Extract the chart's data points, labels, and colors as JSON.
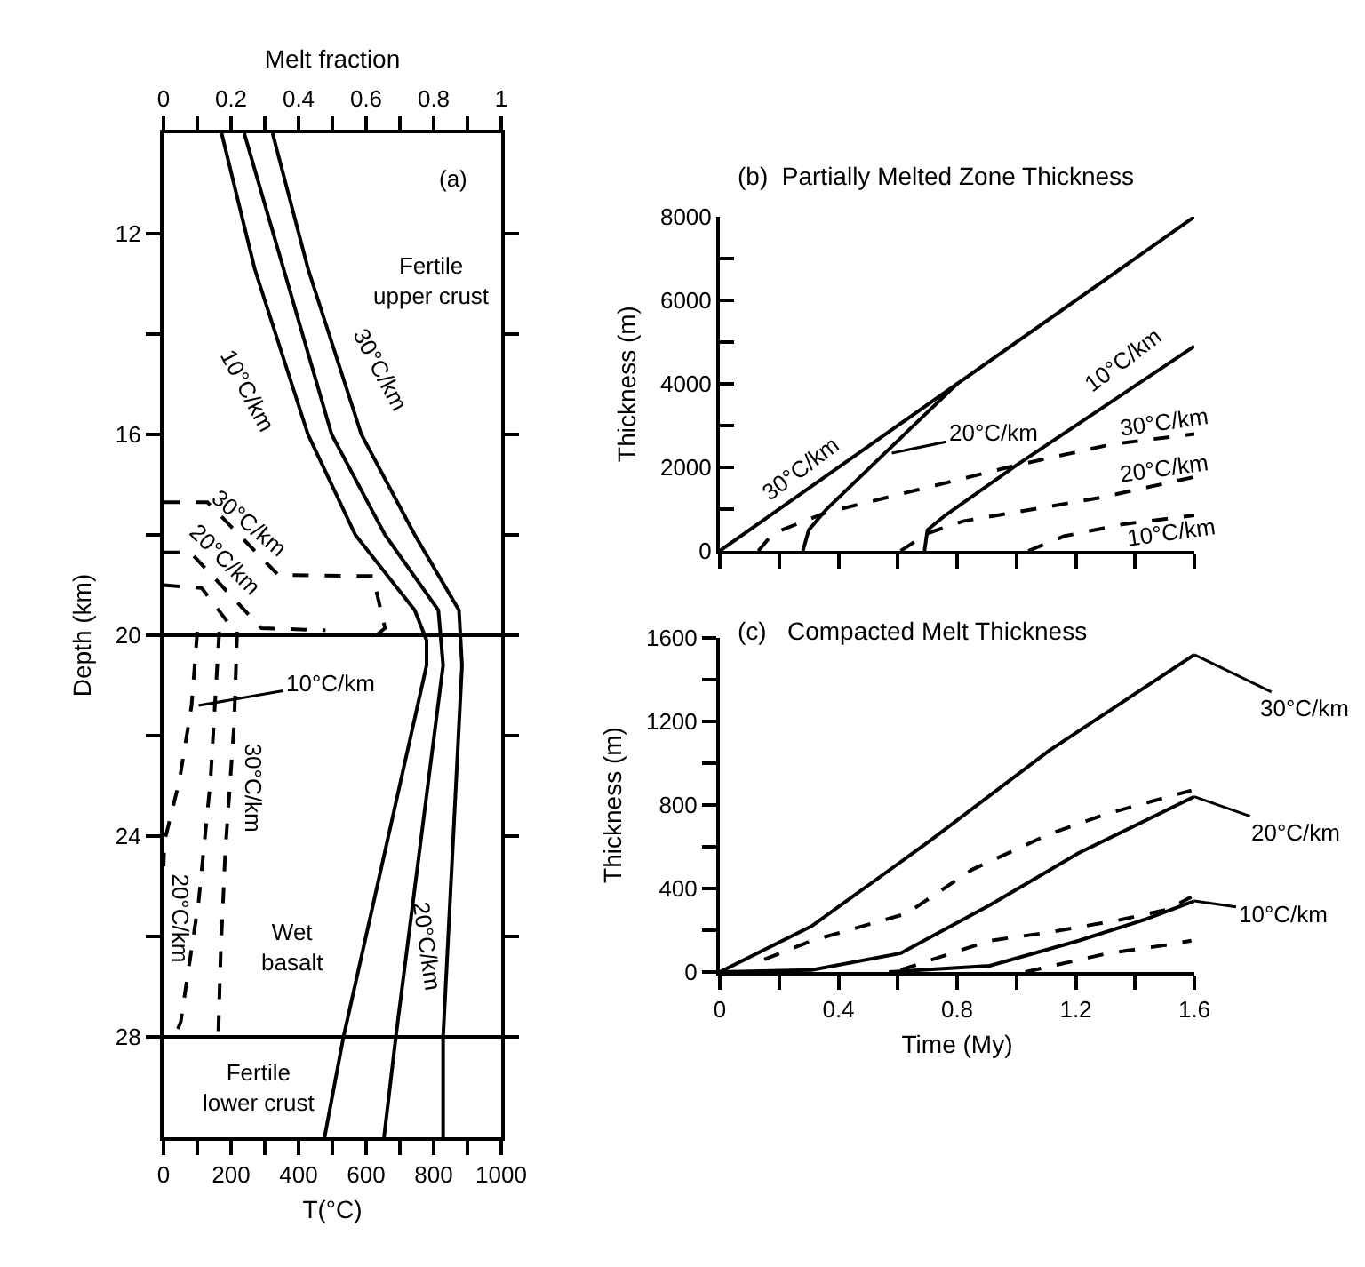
{
  "chart_data": [
    {
      "type": "line",
      "xlabel": "T(°C)",
      "x2label": "Melt fraction",
      "ylabel": "Depth (km)",
      "xlim": [
        0,
        1000
      ],
      "xticks": [
        0,
        {
          "value": 100,
          "label": null
        },
        200,
        {
          "value": 300,
          "label": null
        },
        400,
        {
          "value": 500,
          "label": null
        },
        600,
        {
          "value": 700,
          "label": null
        },
        800,
        {
          "value": 900,
          "label": null
        },
        1000
      ],
      "x2lim": [
        0,
        1
      ],
      "x2ticks": [
        0,
        {
          "value": 0.1,
          "label": null
        },
        0.2,
        {
          "value": 0.3,
          "label": null
        },
        0.4,
        {
          "value": 0.5,
          "label": null
        },
        0.6,
        {
          "value": 0.7,
          "label": null
        },
        0.8,
        {
          "value": 0.9,
          "label": null
        },
        1
      ],
      "ylim": [
        30,
        10
      ],
      "yticks": [
        12,
        {
          "value": 14,
          "label": null
        },
        16,
        {
          "value": 18,
          "label": null
        },
        20,
        {
          "value": 22,
          "label": null
        },
        24,
        {
          "value": 26,
          "label": null
        },
        28
      ],
      "series": [
        {
          "x": [
            172,
            270,
            428,
            568,
            744,
            779,
            779,
            533,
            477
          ],
          "values": [
            10,
            12.7,
            16,
            18,
            19.5,
            20.1,
            20.6,
            28,
            30
          ],
          "color": "#000000",
          "line_style": "solid"
        },
        {
          "x": [
            239,
            498,
            656,
            814,
            828,
            688,
            653
          ],
          "values": [
            10,
            16,
            18,
            19.5,
            20.6,
            28,
            30
          ],
          "color": "#000000",
          "line_style": "solid"
        },
        {
          "x": [
            323,
            428,
            586,
            744,
            875,
            884,
            828,
            828
          ],
          "values": [
            10,
            12.7,
            16,
            18,
            19.5,
            20.6,
            28,
            30
          ],
          "color": "#000000",
          "line_style": "solid"
        },
        {
          "x": [
            0,
            0.13,
            0.34,
            0.62,
            0.656,
            0.63
          ],
          "values": [
            17.35,
            17.35,
            18.8,
            18.82,
            19.86,
            20
          ],
          "color": "#000000",
          "line_style": "dashed",
          "axis": "x2"
        },
        {
          "x": [
            0,
            0.08,
            0.29,
            0.48
          ],
          "values": [
            18.35,
            18.35,
            19.86,
            19.9
          ],
          "color": "#000000",
          "line_style": "dashed",
          "axis": "x2"
        },
        {
          "x": [
            0,
            0.113,
            0.22
          ],
          "values": [
            19,
            19.06,
            20
          ],
          "color": "#000000",
          "line_style": "dashed",
          "axis": "x2"
        },
        {
          "x": [
            0.218,
            0.209,
            0.183,
            0.169,
            0.162
          ],
          "values": [
            19.93,
            21.8,
            24.3,
            26.4,
            28
          ],
          "color": "#000000",
          "line_style": "dashed",
          "axis": "x2"
        },
        {
          "x": [
            0.165,
            0.139,
            0.104,
            0.051,
            0.033
          ],
          "values": [
            19.93,
            22.9,
            25.3,
            27.7,
            28
          ],
          "color": "#000000",
          "line_style": "dashed",
          "axis": "x2"
        },
        {
          "x": [
            0.1,
            0.083,
            0.047,
            0.003,
            0
          ],
          "values": [
            19.93,
            21.4,
            22.9,
            24.1,
            24.6
          ],
          "color": "#000000",
          "line_style": "dashed",
          "axis": "x2"
        }
      ],
      "ref_lines": [
        {
          "axis": "y",
          "value": 20,
          "color": "#000000"
        },
        {
          "axis": "y",
          "value": 28,
          "color": "#000000"
        }
      ],
      "annotations": [
        "(a)",
        "Fertile\nupper crust",
        "10°C/km",
        "30°C/km",
        "30°C/km",
        "20°C/km",
        {
          "text": "10°C/km",
          "x": 104,
          "y": 21.4
        },
        "30°C/km",
        "20°C/km",
        "Wet\nbasalt",
        "20°C/km",
        "Fertile\nlower crust"
      ]
    },
    {
      "type": "line",
      "title": "(b)  Partially Melted Zone Thickness",
      "ylabel": "Thickness (m)",
      "tick_labels": "y",
      "xlim": [
        0,
        1.6
      ],
      "xticks": [
        0,
        {
          "value": 0.2,
          "label": null
        },
        0.4,
        {
          "value": 0.6,
          "label": null
        },
        0.8,
        {
          "value": 1.0,
          "label": null
        },
        1.2,
        {
          "value": 1.4,
          "label": null
        },
        1.6
      ],
      "ylim": [
        0,
        8000
      ],
      "yticks": [
        0,
        {
          "value": 1000,
          "label": null
        },
        2000,
        {
          "value": 3000,
          "label": null
        },
        4000,
        {
          "value": 5000,
          "label": null
        },
        6000,
        {
          "value": 7000,
          "label": null
        },
        8000
      ],
      "series": [
        {
          "x": [
            0,
            1.6
          ],
          "values": [
            0,
            8000
          ],
          "color": "#000000",
          "line_style": "solid"
        },
        {
          "x": [
            0.28,
            0.3,
            0.36,
            0.8
          ],
          "values": [
            0,
            500,
            1000,
            4000
          ],
          "color": "#000000",
          "line_style": "solid"
        },
        {
          "x": [
            0.69,
            0.7,
            0.76,
            1.0,
            1.6
          ],
          "values": [
            0,
            500,
            850,
            2050,
            4900
          ],
          "color": "#000000",
          "line_style": "solid"
        },
        {
          "x": [
            0.13,
            0.18,
            0.36,
            1.0,
            1.32,
            1.6
          ],
          "values": [
            0,
            420,
            920,
            2050,
            2550,
            2800
          ],
          "color": "#000000",
          "line_style": "dashed"
        },
        {
          "x": [
            0.61,
            0.7,
            0.82,
            1.28,
            1.6
          ],
          "values": [
            0,
            420,
            710,
            1270,
            1770
          ],
          "color": "#000000",
          "line_style": "dashed"
        },
        {
          "x": [
            1.04,
            1.16,
            1.36,
            1.6
          ],
          "values": [
            0,
            350,
            640,
            850
          ],
          "color": "#000000",
          "line_style": "dashed"
        }
      ],
      "annotations": [
        "30°C/km",
        {
          "text": "20°C/km",
          "x": 0.58,
          "y": 2340
        },
        "10°C/km",
        "30°C/km",
        "20°C/km",
        "10°C/km"
      ]
    },
    {
      "type": "line",
      "title": "(c)   Compacted Melt Thickness",
      "xlabel": "Time (My)",
      "ylabel": "Thickness (m)",
      "xlim": [
        0,
        1.6
      ],
      "xticks": [
        0,
        {
          "value": 0.2,
          "label": null
        },
        0.4,
        {
          "value": 0.6,
          "label": null
        },
        0.8,
        {
          "value": 1.0,
          "label": null
        },
        1.2,
        {
          "value": 1.4,
          "label": null
        },
        1.6
      ],
      "ylim": [
        0,
        1600
      ],
      "yticks": [
        0,
        {
          "value": 200,
          "label": null
        },
        400,
        {
          "value": 600,
          "label": null
        },
        800,
        {
          "value": 1000,
          "label": null
        },
        1200,
        {
          "value": 1400,
          "label": null
        },
        1600
      ],
      "series": [
        {
          "x": [
            0,
            0.31,
            0.71,
            1.11,
            1.6
          ],
          "values": [
            0,
            220,
            630,
            1060,
            1520
          ],
          "color": "#000000",
          "line_style": "solid"
        },
        {
          "x": [
            0.15,
            0.31,
            0.63,
            0.85,
            1.11,
            1.31,
            1.59
          ],
          "values": [
            60,
            150,
            280,
            490,
            660,
            760,
            870
          ],
          "color": "#000000",
          "line_style": "dashed"
        },
        {
          "x": [
            0,
            0.31,
            0.61,
            0.91,
            1.21,
            1.6
          ],
          "values": [
            0,
            10,
            90,
            320,
            570,
            840
          ],
          "color": "#000000",
          "line_style": "solid"
        },
        {
          "x": [
            0.61,
            0.91,
            1.11,
            1.35,
            1.51,
            1.59
          ],
          "values": [
            10,
            150,
            190,
            250,
            300,
            360
          ],
          "color": "#000000",
          "line_style": "dashed"
        },
        {
          "x": [
            0.57,
            0.91,
            1.21,
            1.43,
            1.6
          ],
          "values": [
            0,
            30,
            150,
            250,
            340
          ],
          "color": "#000000",
          "line_style": "solid"
        },
        {
          "x": [
            1.03,
            1.31,
            1.51,
            1.59
          ],
          "values": [
            0,
            90,
            130,
            150
          ],
          "color": "#000000",
          "line_style": "dashed"
        }
      ],
      "annotations": [
        {
          "text": "30°C/km",
          "x": 1.6,
          "y": 1520
        },
        {
          "text": "20°C/km",
          "x": 1.6,
          "y": 840
        },
        {
          "text": "10°C/km",
          "x": 1.6,
          "y": 340
        }
      ]
    }
  ]
}
